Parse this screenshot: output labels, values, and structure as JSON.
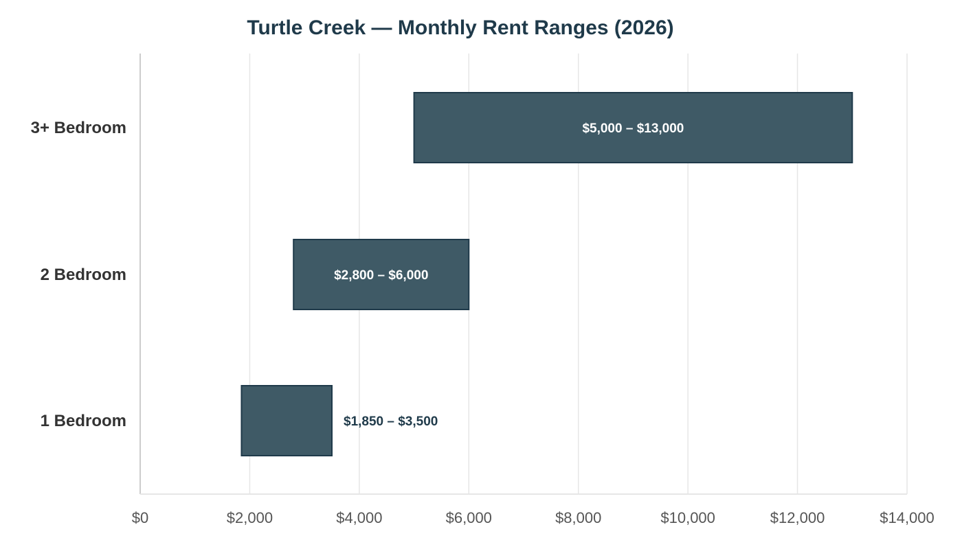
{
  "chart_data": {
    "type": "bar",
    "orientation": "horizontal",
    "style": "range",
    "title": "Turtle Creek — Monthly Rent Ranges (2026)",
    "xlabel": "",
    "ylabel": "",
    "categories": [
      "3+ Bedroom",
      "2 Bedroom",
      "1 Bedroom"
    ],
    "ranges": [
      {
        "category": "3+ Bedroom",
        "low": 5000,
        "high": 13000,
        "label": "$5,000 – $13,000",
        "label_position": "inside"
      },
      {
        "category": "2 Bedroom",
        "low": 2800,
        "high": 6000,
        "label": "$2,800 – $6,000",
        "label_position": "inside"
      },
      {
        "category": "1 Bedroom",
        "low": 1850,
        "high": 3500,
        "label": "$1,850 – $3,500",
        "label_position": "outside"
      }
    ],
    "xlim": [
      0,
      14000
    ],
    "xticks": [
      0,
      2000,
      4000,
      6000,
      8000,
      10000,
      12000,
      14000
    ],
    "xtick_labels": [
      "$0",
      "$2,000",
      "$4,000",
      "$6,000",
      "$8,000",
      "$10,000",
      "$12,000",
      "$14,000"
    ],
    "grid": "vertical",
    "legend": "none",
    "colors": {
      "bar_fill": "#3f5a66",
      "bar_stroke": "#1f3a4a",
      "title": "#1f3a4a",
      "inside_label": "#ffffff",
      "outside_label": "#1f3a4a",
      "grid": "#e6e6e6",
      "axis": "#cccccc"
    }
  }
}
